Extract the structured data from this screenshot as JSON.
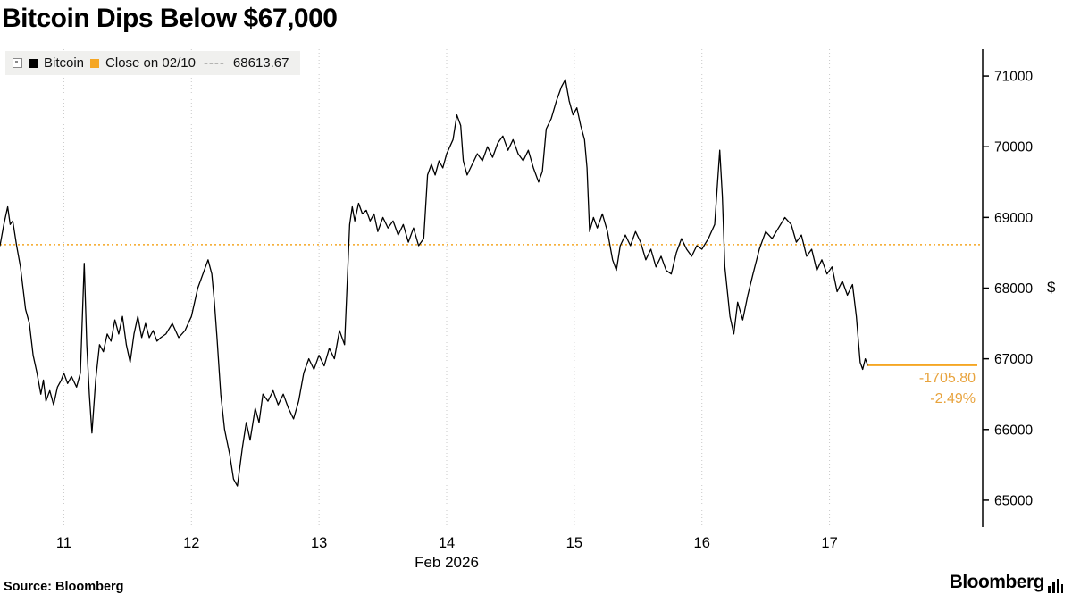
{
  "title": "Bitcoin Dips Below $67,000",
  "legend": {
    "series_label": "Bitcoin",
    "close_label": "Close on 02/10",
    "close_dash": "----",
    "close_value": "68613.67"
  },
  "axis": {
    "dollar": "$"
  },
  "annotation": {
    "change": "-1705.80",
    "pct": "-2.49%"
  },
  "footer": {
    "source": "Source:  Bloomberg",
    "brand": "Bloomberg"
  },
  "colors": {
    "accent": "#F5A623",
    "line": "#000000",
    "grid": "#c8c8c8",
    "legend_bg": "#f0f0ee"
  },
  "chart_data": {
    "type": "line",
    "title": "Bitcoin Dips Below $67,000",
    "xlabel": "Feb 2026",
    "ylabel": "$",
    "legend_position": "top-left",
    "grid": "vertical-dotted",
    "xlim": [
      10.5,
      18.2
    ],
    "ylim": [
      64620,
      71380
    ],
    "y_ticks": [
      65000,
      66000,
      67000,
      68000,
      69000,
      70000,
      71000
    ],
    "x_ticks": [
      11,
      12,
      13,
      14,
      15,
      16,
      17
    ],
    "x_tick_labels": [
      "11",
      "12",
      "13",
      "14",
      "15",
      "16",
      "17"
    ],
    "reference_line": {
      "label": "Close on 02/10",
      "value": 68613.67
    },
    "last_point": {
      "t": 17.3,
      "value": 66907.87,
      "change": -1705.8,
      "pct_change": -2.49
    },
    "series": [
      {
        "name": "Bitcoin",
        "points": [
          [
            10.5,
            68600
          ],
          [
            10.53,
            68900
          ],
          [
            10.56,
            69150
          ],
          [
            10.58,
            68900
          ],
          [
            10.6,
            68950
          ],
          [
            10.63,
            68600
          ],
          [
            10.66,
            68300
          ],
          [
            10.7,
            67700
          ],
          [
            10.73,
            67500
          ],
          [
            10.76,
            67050
          ],
          [
            10.79,
            66800
          ],
          [
            10.82,
            66500
          ],
          [
            10.84,
            66700
          ],
          [
            10.86,
            66400
          ],
          [
            10.89,
            66550
          ],
          [
            10.92,
            66350
          ],
          [
            10.95,
            66600
          ],
          [
            10.98,
            66700
          ],
          [
            11.0,
            66800
          ],
          [
            11.03,
            66650
          ],
          [
            11.06,
            66750
          ],
          [
            11.1,
            66600
          ],
          [
            11.13,
            66800
          ],
          [
            11.16,
            68350
          ],
          [
            11.18,
            67200
          ],
          [
            11.2,
            66500
          ],
          [
            11.22,
            65950
          ],
          [
            11.25,
            66700
          ],
          [
            11.28,
            67200
          ],
          [
            11.31,
            67100
          ],
          [
            11.34,
            67350
          ],
          [
            11.37,
            67250
          ],
          [
            11.4,
            67550
          ],
          [
            11.43,
            67350
          ],
          [
            11.46,
            67600
          ],
          [
            11.49,
            67200
          ],
          [
            11.52,
            66950
          ],
          [
            11.55,
            67350
          ],
          [
            11.58,
            67600
          ],
          [
            11.61,
            67300
          ],
          [
            11.64,
            67500
          ],
          [
            11.67,
            67300
          ],
          [
            11.7,
            67400
          ],
          [
            11.73,
            67250
          ],
          [
            11.76,
            67300
          ],
          [
            11.8,
            67350
          ],
          [
            11.85,
            67500
          ],
          [
            11.9,
            67300
          ],
          [
            11.95,
            67400
          ],
          [
            12.0,
            67600
          ],
          [
            12.05,
            68000
          ],
          [
            12.1,
            68250
          ],
          [
            12.13,
            68400
          ],
          [
            12.16,
            68200
          ],
          [
            12.18,
            67800
          ],
          [
            12.2,
            67300
          ],
          [
            12.23,
            66500
          ],
          [
            12.26,
            66000
          ],
          [
            12.3,
            65650
          ],
          [
            12.33,
            65300
          ],
          [
            12.36,
            65200
          ],
          [
            12.4,
            65750
          ],
          [
            12.43,
            66100
          ],
          [
            12.46,
            65850
          ],
          [
            12.5,
            66300
          ],
          [
            12.53,
            66100
          ],
          [
            12.56,
            66500
          ],
          [
            12.6,
            66400
          ],
          [
            12.64,
            66550
          ],
          [
            12.68,
            66350
          ],
          [
            12.72,
            66500
          ],
          [
            12.76,
            66300
          ],
          [
            12.8,
            66150
          ],
          [
            12.84,
            66400
          ],
          [
            12.88,
            66800
          ],
          [
            12.92,
            67000
          ],
          [
            12.96,
            66850
          ],
          [
            13.0,
            67050
          ],
          [
            13.04,
            66900
          ],
          [
            13.08,
            67150
          ],
          [
            13.12,
            67000
          ],
          [
            13.16,
            67400
          ],
          [
            13.2,
            67200
          ],
          [
            13.24,
            68900
          ],
          [
            13.26,
            69150
          ],
          [
            13.28,
            68950
          ],
          [
            13.31,
            69200
          ],
          [
            13.34,
            69050
          ],
          [
            13.37,
            69100
          ],
          [
            13.4,
            68950
          ],
          [
            13.43,
            69050
          ],
          [
            13.46,
            68800
          ],
          [
            13.5,
            69000
          ],
          [
            13.54,
            68850
          ],
          [
            13.58,
            68950
          ],
          [
            13.62,
            68750
          ],
          [
            13.66,
            68900
          ],
          [
            13.7,
            68650
          ],
          [
            13.74,
            68850
          ],
          [
            13.78,
            68600
          ],
          [
            13.82,
            68700
          ],
          [
            13.85,
            69600
          ],
          [
            13.88,
            69750
          ],
          [
            13.91,
            69600
          ],
          [
            13.94,
            69800
          ],
          [
            13.97,
            69700
          ],
          [
            14.0,
            69900
          ],
          [
            14.05,
            70100
          ],
          [
            14.08,
            70450
          ],
          [
            14.11,
            70300
          ],
          [
            14.13,
            69800
          ],
          [
            14.16,
            69600
          ],
          [
            14.2,
            69750
          ],
          [
            14.24,
            69900
          ],
          [
            14.28,
            69800
          ],
          [
            14.32,
            70000
          ],
          [
            14.36,
            69850
          ],
          [
            14.4,
            70050
          ],
          [
            14.44,
            70150
          ],
          [
            14.48,
            69950
          ],
          [
            14.52,
            70100
          ],
          [
            14.56,
            69900
          ],
          [
            14.6,
            69800
          ],
          [
            14.64,
            69950
          ],
          [
            14.68,
            69700
          ],
          [
            14.72,
            69500
          ],
          [
            14.75,
            69650
          ],
          [
            14.78,
            70250
          ],
          [
            14.82,
            70400
          ],
          [
            14.86,
            70650
          ],
          [
            14.9,
            70850
          ],
          [
            14.93,
            70950
          ],
          [
            14.96,
            70650
          ],
          [
            14.99,
            70450
          ],
          [
            15.02,
            70550
          ],
          [
            15.05,
            70300
          ],
          [
            15.08,
            70100
          ],
          [
            15.1,
            69700
          ],
          [
            15.12,
            68800
          ],
          [
            15.15,
            69000
          ],
          [
            15.18,
            68850
          ],
          [
            15.22,
            69050
          ],
          [
            15.26,
            68800
          ],
          [
            15.3,
            68400
          ],
          [
            15.33,
            68250
          ],
          [
            15.36,
            68600
          ],
          [
            15.4,
            68750
          ],
          [
            15.44,
            68600
          ],
          [
            15.48,
            68800
          ],
          [
            15.52,
            68650
          ],
          [
            15.56,
            68400
          ],
          [
            15.6,
            68550
          ],
          [
            15.64,
            68300
          ],
          [
            15.68,
            68450
          ],
          [
            15.72,
            68250
          ],
          [
            15.76,
            68200
          ],
          [
            15.8,
            68500
          ],
          [
            15.84,
            68700
          ],
          [
            15.88,
            68550
          ],
          [
            15.92,
            68450
          ],
          [
            15.96,
            68600
          ],
          [
            16.0,
            68550
          ],
          [
            16.05,
            68700
          ],
          [
            16.1,
            68900
          ],
          [
            16.14,
            69950
          ],
          [
            16.16,
            69300
          ],
          [
            16.18,
            68300
          ],
          [
            16.22,
            67600
          ],
          [
            16.25,
            67350
          ],
          [
            16.28,
            67800
          ],
          [
            16.32,
            67550
          ],
          [
            16.36,
            67900
          ],
          [
            16.4,
            68200
          ],
          [
            16.45,
            68550
          ],
          [
            16.5,
            68800
          ],
          [
            16.55,
            68700
          ],
          [
            16.6,
            68850
          ],
          [
            16.65,
            69000
          ],
          [
            16.7,
            68900
          ],
          [
            16.74,
            68650
          ],
          [
            16.78,
            68750
          ],
          [
            16.82,
            68450
          ],
          [
            16.86,
            68550
          ],
          [
            16.9,
            68250
          ],
          [
            16.94,
            68400
          ],
          [
            16.98,
            68200
          ],
          [
            17.02,
            68300
          ],
          [
            17.06,
            67950
          ],
          [
            17.1,
            68100
          ],
          [
            17.14,
            67900
          ],
          [
            17.18,
            68050
          ],
          [
            17.21,
            67600
          ],
          [
            17.24,
            66950
          ],
          [
            17.26,
            66850
          ],
          [
            17.28,
            67000
          ],
          [
            17.3,
            66907.87
          ]
        ]
      }
    ]
  }
}
